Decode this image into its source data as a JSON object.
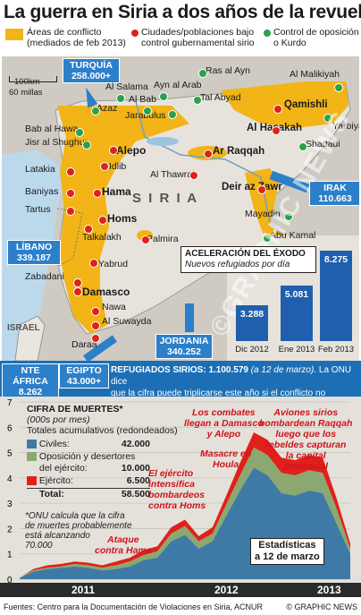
{
  "title": "La guerra en Siria a dos años de la revuelta",
  "legend": {
    "conflict": [
      "Áreas de conflicto",
      "(mediados de feb 2013)"
    ],
    "gov": [
      "Ciudades/poblaciones bajo",
      "control gubernamental sirio"
    ],
    "opp": [
      "Control de oposición",
      "o Kurdo"
    ]
  },
  "map": {
    "scale_km": "100km",
    "scale_mi": "60 millas",
    "country": "S I R I A",
    "israel": "ISRAEL",
    "places": [
      "Ras al Ayn",
      "Al Malikiyah",
      "Tal Abyad",
      "Ayn al Arab",
      "Al Salama",
      "Al Bab",
      "Azaz",
      "Jarabulus",
      "Qamishli",
      "Yarbiya",
      "Al Hasakah",
      "Shadadi",
      "Bab al Hawa",
      "Jisr al Shughur",
      "Alepo",
      "Idlib",
      "Ar Raqqah",
      "Al Thawrah",
      "Latakia",
      "Baniyas",
      "Tartus",
      "Hama",
      "Homs",
      "Deir az Zawr",
      "Mayadin",
      "Abu Kamal",
      "Palmira",
      "Talkalakh",
      "Yabrud",
      "Zabadani",
      "Damasco",
      "Nawa",
      "Al Suwayda",
      "Daraa"
    ],
    "turquia": {
      "name": "TURQUÍA",
      "value": "258.000+"
    },
    "libano": {
      "name": "LÍBANO",
      "value": "339.187"
    },
    "irak": {
      "name": "IRAK",
      "value": "110.663"
    },
    "jordania": {
      "name": "JORDANIA",
      "value": "340.252"
    },
    "watermark": "©GRAPHIC NEWS"
  },
  "exodus": {
    "title": "Aceleración del éxodo",
    "subtitle": "Nuevos refugiados por día",
    "labels": [
      "Dic 2012",
      "Ene 2013",
      "Feb 2013"
    ],
    "values": [
      "3.288",
      "5.081",
      "8.275"
    ]
  },
  "refugees": {
    "africa": {
      "name": "NTE ÁFRICA",
      "value": "8.262"
    },
    "egipto": {
      "name": "EGIPTO",
      "value": "43.000+"
    },
    "text_head": "REFUGIADOS SIRIOS:",
    "text_num": " 1.100.579",
    "text_date": " (a 12 de marzo).",
    "text_rest1": " La ONU dice",
    "text_rest2": "que la cifra puede triplicarse este año si el conflicto no termina"
  },
  "deaths": {
    "title": "CIFRA DE MUERTES*",
    "unit": "(000s por mes)",
    "subtitle": "Totales acumulativos (redondeados)",
    "rows": [
      {
        "label": "Civiles:",
        "value": "42.000"
      },
      {
        "label": "Oposición y desertores",
        "label2": "del ejército:",
        "value": "10.000"
      },
      {
        "label": "Ejército:",
        "value": "6.500"
      },
      {
        "label": "Total:",
        "value": "58.500"
      }
    ],
    "note": [
      "*ONU calcula que la cifra",
      "de muertes probablemente",
      "está alcanzando",
      "70.000"
    ],
    "annotations": {
      "hama": [
        "Ataque",
        "contra Hama"
      ],
      "homs": [
        "El ejército",
        "intensifica",
        "bombardeos",
        "contra Homs"
      ],
      "houla": [
        "Masacre en",
        "Houla"
      ],
      "damasco": [
        "Los combates",
        "llegan a Damasco",
        "y Alepo"
      ],
      "raqqah": [
        "Aviones sirios",
        "bombardean Raqqah",
        "luego que los",
        "rebeldes capturan",
        "la capital",
        "provincial"
      ]
    },
    "stats": [
      "Estadísticas",
      "a 12 de marzo"
    ],
    "years": [
      "2011",
      "2012",
      "2013"
    ]
  },
  "chart_data": {
    "type": "area",
    "title": "CIFRA DE MUERTES*",
    "ylabel": "(000s por mes)",
    "ylim": [
      0,
      7
    ],
    "yticks": [
      0,
      1,
      2,
      3,
      4,
      5,
      6,
      7
    ],
    "x": [
      "2011-03",
      "2011-04",
      "2011-05",
      "2011-06",
      "2011-07",
      "2011-08",
      "2011-09",
      "2011-10",
      "2011-11",
      "2011-12",
      "2012-01",
      "2012-02",
      "2012-03",
      "2012-04",
      "2012-05",
      "2012-06",
      "2012-07",
      "2012-08",
      "2012-09",
      "2012-10",
      "2012-11",
      "2012-12",
      "2013-01",
      "2013-02",
      "2013-03"
    ],
    "series": [
      {
        "name": "Civiles",
        "color": "#3f7aa6",
        "values": [
          0.05,
          0.3,
          0.4,
          0.45,
          0.5,
          0.45,
          0.35,
          0.4,
          0.5,
          0.75,
          0.85,
          1.5,
          1.75,
          1.2,
          1.5,
          2.5,
          3.5,
          4.4,
          4.1,
          3.4,
          3.3,
          3.5,
          3.4,
          2.2,
          1.0
        ]
      },
      {
        "name": "Oposición y desertores del ejército",
        "color": "#8aa86f",
        "values": [
          0,
          0.05,
          0.05,
          0.05,
          0.1,
          0.1,
          0.1,
          0.15,
          0.2,
          0.2,
          0.25,
          0.3,
          0.35,
          0.3,
          0.3,
          0.45,
          0.6,
          0.8,
          0.8,
          0.8,
          0.8,
          0.8,
          0.8,
          0.6,
          0.2
        ]
      },
      {
        "name": "Ejército",
        "color": "#e0211b",
        "values": [
          0,
          0.05,
          0.1,
          0.1,
          0.1,
          0.1,
          0.1,
          0.15,
          0.15,
          0.2,
          0.2,
          0.25,
          0.25,
          0.2,
          0.25,
          0.35,
          0.5,
          0.6,
          0.6,
          0.6,
          0.6,
          0.6,
          0.6,
          0.4,
          0.2
        ]
      }
    ]
  },
  "footer": {
    "source": "Fuentes: Centro para la Documentación de Violaciones en Siria, ACNUR",
    "copyright": "© GRAPHIC NEWS"
  }
}
